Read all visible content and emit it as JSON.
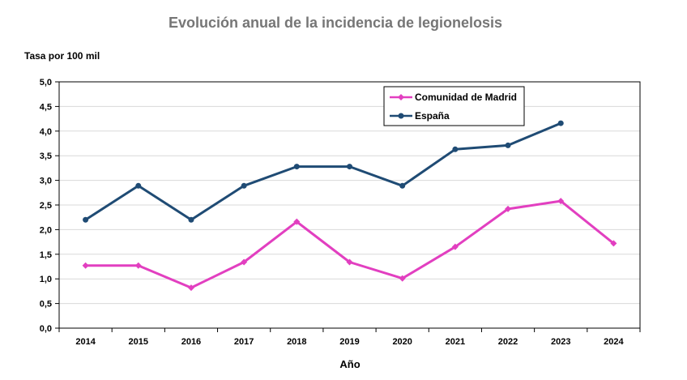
{
  "chart_data": {
    "type": "line",
    "title": "Evolución anual de la incidencia de legionelosis",
    "ylabel": "Tasa por 100 mil",
    "xlabel": "Año",
    "categories": [
      "2014",
      "2015",
      "2016",
      "2017",
      "2018",
      "2019",
      "2020",
      "2021",
      "2022",
      "2023",
      "2024"
    ],
    "ylim": [
      0,
      5
    ],
    "yticks": [
      "0,0",
      "0,5",
      "1,0",
      "1,5",
      "2,0",
      "2,5",
      "3,0",
      "3,5",
      "4,0",
      "4,5",
      "5,0"
    ],
    "grid": true,
    "legend_position": "top-right",
    "series": [
      {
        "name": "Comunidad de Madrid",
        "color": "#E23FC0",
        "marker": "diamond",
        "values": [
          1.27,
          1.27,
          0.82,
          1.34,
          2.16,
          1.34,
          1.01,
          1.65,
          2.42,
          2.58,
          1.72
        ]
      },
      {
        "name": "España",
        "color": "#1F4B74",
        "marker": "circle",
        "values": [
          2.2,
          2.89,
          2.2,
          2.89,
          3.28,
          3.28,
          2.89,
          3.63,
          3.71,
          4.16,
          null
        ]
      }
    ]
  }
}
